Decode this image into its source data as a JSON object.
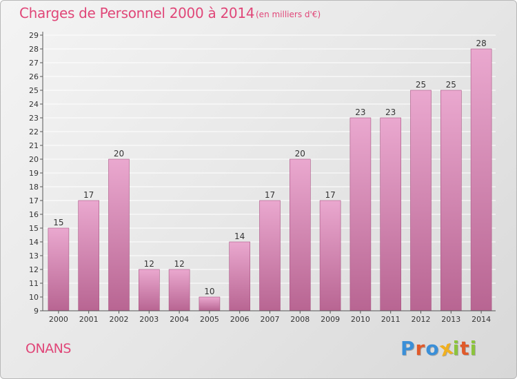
{
  "header": {
    "title": "Charges de Personnel 2000 à 2014",
    "subtitle": "(en milliers d'€)"
  },
  "footer": {
    "place": "ONANS",
    "logo_letters": [
      {
        "ch": "P",
        "color": "#3a8fd8"
      },
      {
        "ch": "r",
        "color": "#e05a2a"
      },
      {
        "ch": "o",
        "color": "#3a8fd8"
      },
      {
        "ch": "x",
        "color": "#f0b020"
      },
      {
        "ch": "i",
        "color": "#8cc43c"
      },
      {
        "ch": "t",
        "color": "#e05a2a"
      },
      {
        "ch": "i",
        "color": "#8cc43c"
      }
    ]
  },
  "colors": {
    "accent": "#e04678",
    "bar_top": "#eaa8cf",
    "bar_bottom": "#b86592",
    "bar_edge": "#a85583",
    "grid": "#ffffff",
    "axis": "#555555"
  },
  "chart_data": {
    "type": "bar",
    "title": "Charges de Personnel 2000 à 2014",
    "subtitle": "(en milliers d'€)",
    "categories": [
      "2000",
      "2001",
      "2002",
      "2003",
      "2004",
      "2005",
      "2006",
      "2007",
      "2008",
      "2009",
      "2010",
      "2011",
      "2012",
      "2013",
      "2014"
    ],
    "values": [
      15,
      17,
      20,
      12,
      12,
      10,
      14,
      17,
      20,
      17,
      23,
      23,
      25,
      25,
      28
    ],
    "xlabel": "",
    "ylabel": "",
    "ylim": [
      9,
      29
    ],
    "yticks": [
      9,
      10,
      11,
      12,
      13,
      14,
      15,
      16,
      17,
      18,
      19,
      20,
      21,
      22,
      23,
      24,
      25,
      26,
      27,
      28,
      29
    ],
    "grid": true,
    "data_labels": true
  }
}
